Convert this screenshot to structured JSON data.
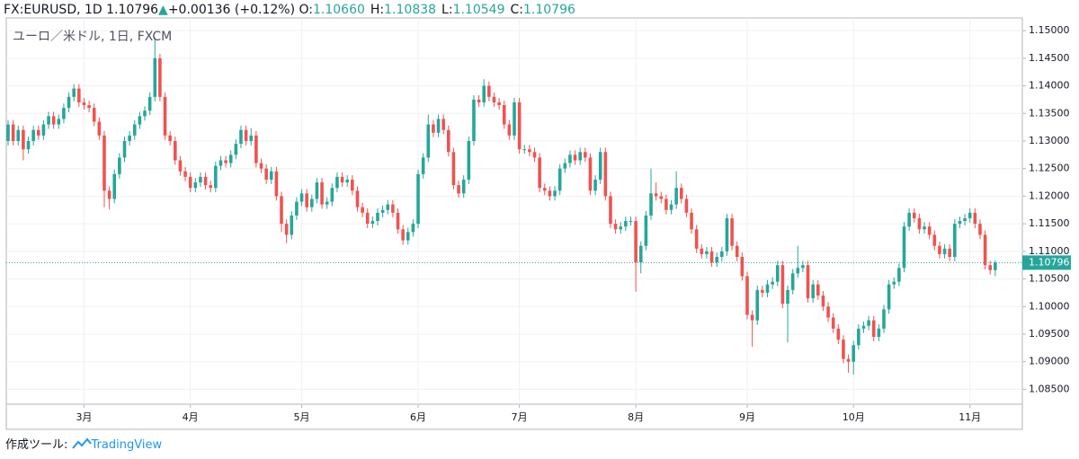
{
  "header": {
    "symbol": "FX:EURUSD, 1D",
    "price": "1.10796",
    "change": "+0.00136 (+0.12%)",
    "ohlc": [
      {
        "label": "O:",
        "value": "1.10660"
      },
      {
        "label": "H:",
        "value": "1.10838"
      },
      {
        "label": "L:",
        "value": "1.10549"
      },
      {
        "label": "C:",
        "value": "1.10796"
      }
    ]
  },
  "footer": {
    "label": "作成ツール:",
    "brand": "TradingView"
  },
  "chart_data": {
    "type": "candlestick",
    "title": "ユーロ／米ドル, 1日, FXCM",
    "up_color": "#26a69a",
    "down_color": "#ef5350",
    "grid": true,
    "last_price": 1.10796,
    "ylim": [
      1.0823,
      1.1523
    ],
    "yticks": [
      {
        "value": 1.085,
        "label": "1.08500"
      },
      {
        "value": 1.09,
        "label": "1.09000"
      },
      {
        "value": 1.095,
        "label": "1.09500"
      },
      {
        "value": 1.1,
        "label": "1.10000"
      },
      {
        "value": 1.105,
        "label": "1.10500"
      },
      {
        "value": 1.11,
        "label": "1.11000"
      },
      {
        "value": 1.115,
        "label": "1.11500"
      },
      {
        "value": 1.12,
        "label": "1.12000"
      },
      {
        "value": 1.125,
        "label": "1.12500"
      },
      {
        "value": 1.13,
        "label": "1.13000"
      },
      {
        "value": 1.135,
        "label": "1.13500"
      },
      {
        "value": 1.14,
        "label": "1.14000"
      },
      {
        "value": 1.145,
        "label": "1.14500"
      },
      {
        "value": 1.15,
        "label": "1.15000"
      }
    ],
    "categories": [
      null,
      null,
      null,
      null,
      null,
      null,
      null,
      null,
      null,
      null,
      null,
      null,
      null,
      null,
      null,
      "3月",
      null,
      null,
      null,
      null,
      null,
      null,
      null,
      null,
      null,
      null,
      null,
      null,
      null,
      null,
      null,
      null,
      null,
      null,
      null,
      null,
      "4月",
      null,
      null,
      null,
      null,
      null,
      null,
      null,
      null,
      null,
      null,
      null,
      null,
      null,
      null,
      null,
      null,
      null,
      null,
      null,
      null,
      null,
      "5月",
      null,
      null,
      null,
      null,
      null,
      null,
      null,
      null,
      null,
      null,
      null,
      null,
      null,
      null,
      null,
      null,
      null,
      null,
      null,
      null,
      null,
      null,
      "6月",
      null,
      null,
      null,
      null,
      null,
      null,
      null,
      null,
      null,
      null,
      null,
      null,
      null,
      null,
      null,
      null,
      null,
      null,
      null,
      "7月",
      null,
      null,
      null,
      null,
      null,
      null,
      null,
      null,
      null,
      null,
      null,
      null,
      null,
      null,
      null,
      null,
      null,
      null,
      null,
      null,
      null,
      null,
      "8月",
      null,
      null,
      null,
      null,
      null,
      null,
      null,
      null,
      null,
      null,
      null,
      null,
      null,
      null,
      null,
      null,
      null,
      null,
      null,
      null,
      null,
      "9月",
      null,
      null,
      null,
      null,
      null,
      null,
      null,
      null,
      null,
      null,
      null,
      null,
      null,
      null,
      null,
      null,
      null,
      null,
      null,
      null,
      "10月",
      null,
      null,
      null,
      null,
      null,
      null,
      null,
      null,
      null,
      null,
      null,
      null,
      null,
      null,
      null,
      null,
      null,
      null,
      null,
      null,
      null,
      null,
      "11月",
      null,
      null,
      null,
      null,
      null
    ],
    "open": [
      1.13,
      1.133,
      1.13,
      1.132,
      1.1285,
      1.13,
      1.132,
      1.131,
      1.133,
      1.1345,
      1.133,
      1.134,
      1.136,
      1.138,
      1.1395,
      1.137,
      1.1365,
      1.136,
      1.1335,
      1.131,
      1.121,
      1.1195,
      1.124,
      1.127,
      1.13,
      1.131,
      1.133,
      1.1345,
      1.1355,
      1.138,
      1.145,
      1.138,
      1.131,
      1.13,
      1.1265,
      1.1245,
      1.1235,
      1.1215,
      1.1225,
      1.1235,
      1.122,
      1.1215,
      1.1255,
      1.1265,
      1.126,
      1.1275,
      1.1295,
      1.132,
      1.13,
      1.131,
      1.126,
      1.125,
      1.123,
      1.1245,
      1.12,
      1.115,
      1.113,
      1.1165,
      1.119,
      1.1205,
      1.118,
      1.1195,
      1.1225,
      1.1185,
      1.119,
      1.1215,
      1.1235,
      1.1225,
      1.123,
      1.121,
      1.118,
      1.117,
      1.115,
      1.1155,
      1.117,
      1.1175,
      1.1185,
      1.117,
      1.114,
      1.112,
      1.1135,
      1.115,
      1.124,
      1.127,
      1.133,
      1.1315,
      1.134,
      1.132,
      1.128,
      1.122,
      1.1205,
      1.123,
      1.13,
      1.1375,
      1.137,
      1.14,
      1.138,
      1.137,
      1.1365,
      1.133,
      1.131,
      1.137,
      1.1285,
      1.1285,
      1.128,
      1.127,
      1.1215,
      1.121,
      1.12,
      1.121,
      1.125,
      1.126,
      1.1275,
      1.1265,
      1.128,
      1.127,
      1.121,
      1.123,
      1.128,
      1.12,
      1.115,
      1.114,
      1.1145,
      1.1155,
      1.1155,
      1.108,
      1.111,
      1.1165,
      1.1205,
      1.12,
      1.1195,
      1.1175,
      1.1185,
      1.1215,
      1.1195,
      1.117,
      1.114,
      1.1105,
      1.1095,
      1.11,
      1.108,
      1.109,
      1.11,
      1.116,
      1.111,
      1.109,
      1.1055,
      1.0985,
      1.0975,
      1.103,
      1.1025,
      1.104,
      1.1045,
      1.1075,
      1.1005,
      1.103,
      1.106,
      1.107,
      1.1075,
      1.1015,
      1.104,
      1.102,
      1.1,
      1.098,
      1.096,
      1.094,
      1.0905,
      1.09,
      1.093,
      1.096,
      1.0965,
      1.0975,
      1.0945,
      1.096,
      1.0995,
      1.104,
      1.1045,
      1.107,
      1.1145,
      1.117,
      1.116,
      1.114,
      1.1145,
      1.113,
      1.111,
      1.1095,
      1.1105,
      1.109,
      1.115,
      1.1155,
      1.116,
      1.117,
      1.115,
      1.113,
      1.1075,
      1.1066
    ],
    "high": [
      1.1338,
      1.1338,
      1.1328,
      1.1328,
      1.1308,
      1.1328,
      1.1328,
      1.1338,
      1.1353,
      1.1353,
      1.1348,
      1.1368,
      1.1388,
      1.1403,
      1.1403,
      1.1378,
      1.1373,
      1.1368,
      1.1343,
      1.1318,
      1.1218,
      1.1248,
      1.1278,
      1.1308,
      1.1318,
      1.1338,
      1.1353,
      1.1363,
      1.1388,
      1.1488,
      1.1458,
      1.1388,
      1.1318,
      1.1308,
      1.1273,
      1.1253,
      1.1243,
      1.1233,
      1.1243,
      1.1243,
      1.1228,
      1.1263,
      1.1273,
      1.1273,
      1.1283,
      1.1303,
      1.1328,
      1.1328,
      1.1323,
      1.1318,
      1.1268,
      1.1258,
      1.1253,
      1.1253,
      1.1208,
      1.1158,
      1.1173,
      1.1198,
      1.1213,
      1.1213,
      1.1203,
      1.1233,
      1.1233,
      1.1198,
      1.1223,
      1.1243,
      1.1243,
      1.1238,
      1.1238,
      1.1218,
      1.1188,
      1.1178,
      1.1163,
      1.1178,
      1.1183,
      1.1193,
      1.1193,
      1.1178,
      1.1148,
      1.1143,
      1.1158,
      1.1248,
      1.1278,
      1.1348,
      1.1338,
      1.1348,
      1.1348,
      1.1328,
      1.1288,
      1.1228,
      1.1238,
      1.1308,
      1.1383,
      1.1383,
      1.1412,
      1.1408,
      1.1388,
      1.1378,
      1.1373,
      1.1338,
      1.1378,
      1.1378,
      1.1293,
      1.1293,
      1.1288,
      1.1278,
      1.1223,
      1.1218,
      1.1218,
      1.1258,
      1.1268,
      1.1283,
      1.1283,
      1.1288,
      1.1288,
      1.1278,
      1.1238,
      1.1288,
      1.1288,
      1.1208,
      1.1158,
      1.1153,
      1.1163,
      1.1163,
      1.1163,
      1.1118,
      1.1173,
      1.125,
      1.1225,
      1.1208,
      1.1203,
      1.1193,
      1.1245,
      1.1223,
      1.1203,
      1.1178,
      1.1148,
      1.1113,
      1.1108,
      1.1108,
      1.1098,
      1.1108,
      1.1168,
      1.1168,
      1.1118,
      1.1098,
      1.1063,
      1.0993,
      1.1038,
      1.1038,
      1.1048,
      1.1053,
      1.1083,
      1.1083,
      1.1038,
      1.1068,
      1.111,
      1.1083,
      1.1083,
      1.1048,
      1.1048,
      1.1028,
      1.1008,
      1.0988,
      1.0968,
      1.0948,
      1.0913,
      1.0938,
      1.0968,
      1.0973,
      1.0983,
      1.0983,
      1.0968,
      1.1003,
      1.1048,
      1.1053,
      1.1078,
      1.1153,
      1.1178,
      1.1178,
      1.1168,
      1.1153,
      1.1153,
      1.1138,
      1.1118,
      1.1113,
      1.1113,
      1.1158,
      1.1163,
      1.1168,
      1.1178,
      1.1178,
      1.1158,
      1.1138,
      1.1083,
      1.10838
    ],
    "low": [
      1.1292,
      1.1292,
      1.1292,
      1.1265,
      1.1277,
      1.1292,
      1.1302,
      1.1302,
      1.1322,
      1.1322,
      1.1322,
      1.1332,
      1.1352,
      1.1372,
      1.1362,
      1.1357,
      1.1352,
      1.1327,
      1.1302,
      1.118,
      1.1176,
      1.1187,
      1.1232,
      1.1262,
      1.1292,
      1.1302,
      1.1322,
      1.1337,
      1.1347,
      1.1372,
      1.1372,
      1.1302,
      1.1292,
      1.1257,
      1.1237,
      1.1227,
      1.1207,
      1.1207,
      1.1217,
      1.1212,
      1.1207,
      1.1207,
      1.1247,
      1.1252,
      1.1252,
      1.1267,
      1.1287,
      1.1292,
      1.1292,
      1.1252,
      1.1242,
      1.1222,
      1.1222,
      1.1192,
      1.1135,
      1.1115,
      1.1122,
      1.1157,
      1.1182,
      1.1172,
      1.1172,
      1.1187,
      1.1177,
      1.1177,
      1.1182,
      1.1207,
      1.1217,
      1.1217,
      1.1202,
      1.1172,
      1.1162,
      1.1142,
      1.1142,
      1.1147,
      1.1162,
      1.1167,
      1.1162,
      1.1132,
      1.1112,
      1.1112,
      1.1127,
      1.1142,
      1.1232,
      1.1262,
      1.1307,
      1.1307,
      1.1312,
      1.1272,
      1.1212,
      1.1197,
      1.1197,
      1.1222,
      1.1292,
      1.1362,
      1.1362,
      1.1372,
      1.1362,
      1.1357,
      1.1322,
      1.1302,
      1.1302,
      1.1277,
      1.1277,
      1.1272,
      1.1262,
      1.1207,
      1.1202,
      1.1192,
      1.1192,
      1.1202,
      1.1242,
      1.1252,
      1.1257,
      1.1257,
      1.1262,
      1.1202,
      1.1202,
      1.1222,
      1.1192,
      1.1142,
      1.1132,
      1.1132,
      1.1137,
      1.1147,
      1.1027,
      1.106,
      1.1102,
      1.1157,
      1.1192,
      1.1187,
      1.1167,
      1.1167,
      1.1177,
      1.1187,
      1.1162,
      1.1132,
      1.1097,
      1.1087,
      1.1087,
      1.1072,
      1.1072,
      1.1082,
      1.1092,
      1.1102,
      1.1082,
      1.1047,
      1.0977,
      1.0927,
      1.0967,
      1.1017,
      1.1017,
      1.1032,
      1.1037,
      1.0997,
      1.0935,
      1.1022,
      1.1052,
      1.1062,
      1.1007,
      1.1007,
      1.1012,
      1.0992,
      1.0972,
      1.0952,
      1.0932,
      1.0897,
      1.088,
      1.0877,
      1.0922,
      1.0952,
      1.0957,
      1.0937,
      1.0937,
      1.0952,
      1.0987,
      1.1032,
      1.1037,
      1.1062,
      1.1137,
      1.1152,
      1.1132,
      1.1132,
      1.1122,
      1.1102,
      1.1087,
      1.1087,
      1.1082,
      1.1082,
      1.1142,
      1.1147,
      1.1152,
      1.1142,
      1.1122,
      1.1067,
      1.1058,
      1.10549
    ],
    "close": [
      1.133,
      1.13,
      1.132,
      1.1285,
      1.13,
      1.132,
      1.131,
      1.133,
      1.1345,
      1.133,
      1.134,
      1.136,
      1.138,
      1.1395,
      1.137,
      1.1365,
      1.136,
      1.1335,
      1.131,
      1.121,
      1.1195,
      1.124,
      1.127,
      1.13,
      1.131,
      1.133,
      1.1345,
      1.1355,
      1.138,
      1.145,
      1.138,
      1.131,
      1.13,
      1.1265,
      1.1245,
      1.1235,
      1.1215,
      1.1225,
      1.1235,
      1.122,
      1.1215,
      1.1255,
      1.1265,
      1.126,
      1.1275,
      1.1295,
      1.132,
      1.13,
      1.131,
      1.126,
      1.125,
      1.123,
      1.1245,
      1.12,
      1.115,
      1.113,
      1.1165,
      1.119,
      1.1205,
      1.118,
      1.1195,
      1.1225,
      1.1185,
      1.119,
      1.1215,
      1.1235,
      1.1225,
      1.123,
      1.121,
      1.118,
      1.117,
      1.115,
      1.1155,
      1.117,
      1.1175,
      1.1185,
      1.117,
      1.114,
      1.112,
      1.1135,
      1.115,
      1.124,
      1.127,
      1.133,
      1.1315,
      1.134,
      1.132,
      1.128,
      1.122,
      1.1205,
      1.123,
      1.13,
      1.1375,
      1.137,
      1.14,
      1.138,
      1.137,
      1.1365,
      1.133,
      1.131,
      1.137,
      1.1285,
      1.1285,
      1.128,
      1.127,
      1.1215,
      1.121,
      1.12,
      1.121,
      1.125,
      1.126,
      1.1275,
      1.1265,
      1.128,
      1.127,
      1.121,
      1.123,
      1.128,
      1.12,
      1.115,
      1.114,
      1.1145,
      1.1155,
      1.1155,
      1.108,
      1.111,
      1.1165,
      1.1205,
      1.12,
      1.1195,
      1.1175,
      1.1185,
      1.1215,
      1.1195,
      1.117,
      1.114,
      1.1105,
      1.1095,
      1.11,
      1.108,
      1.109,
      1.11,
      1.116,
      1.111,
      1.109,
      1.1055,
      1.0985,
      1.0975,
      1.103,
      1.1025,
      1.104,
      1.1045,
      1.1075,
      1.1005,
      1.103,
      1.106,
      1.107,
      1.1075,
      1.1015,
      1.104,
      1.102,
      1.1,
      1.098,
      1.096,
      1.094,
      1.0905,
      1.09,
      1.093,
      1.096,
      1.0965,
      1.0975,
      1.0945,
      1.096,
      1.0995,
      1.104,
      1.1045,
      1.107,
      1.1145,
      1.117,
      1.116,
      1.114,
      1.1145,
      1.113,
      1.111,
      1.1095,
      1.1105,
      1.109,
      1.115,
      1.1155,
      1.116,
      1.117,
      1.115,
      1.113,
      1.1075,
      1.1066,
      1.10796
    ]
  }
}
